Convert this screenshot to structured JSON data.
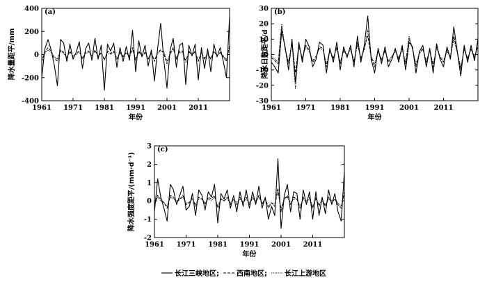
{
  "chart_data": [
    {
      "id": "a",
      "type": "line",
      "panel_label": "(a)",
      "title": "",
      "xlabel": "年份",
      "ylabel": "降水量距平/mm",
      "xlim": [
        1961,
        2021
      ],
      "ylim": [
        -400,
        400
      ],
      "xticks": [
        1961,
        1971,
        1981,
        1991,
        2001,
        2011
      ],
      "yticks": [
        -400,
        -200,
        0,
        200,
        400
      ],
      "x": [
        1961,
        1962,
        1963,
        1964,
        1965,
        1966,
        1967,
        1968,
        1969,
        1970,
        1971,
        1972,
        1973,
        1974,
        1975,
        1976,
        1977,
        1978,
        1979,
        1980,
        1981,
        1982,
        1983,
        1984,
        1985,
        1986,
        1987,
        1988,
        1989,
        1990,
        1991,
        1992,
        1993,
        1994,
        1995,
        1996,
        1997,
        1998,
        1999,
        2000,
        2001,
        2002,
        2003,
        2004,
        2005,
        2006,
        2007,
        2008,
        2009,
        2010,
        2011,
        2012,
        2013,
        2014,
        2015,
        2016,
        2017,
        2018,
        2019,
        2020,
        2021
      ],
      "series": [
        {
          "name": "长江三峡地区",
          "style": "solid",
          "values": [
            -200,
            50,
            130,
            40,
            -90,
            -270,
            130,
            100,
            -60,
            90,
            -40,
            20,
            110,
            -120,
            50,
            100,
            -50,
            140,
            -40,
            80,
            -310,
            90,
            30,
            100,
            -110,
            60,
            -60,
            70,
            -50,
            210,
            -150,
            120,
            -20,
            80,
            -100,
            40,
            -230,
            50,
            270,
            -50,
            -290,
            40,
            140,
            -110,
            80,
            100,
            -260,
            80,
            -10,
            90,
            -220,
            60,
            -120,
            50,
            -150,
            90,
            -20,
            60,
            -60,
            -200,
            330
          ]
        },
        {
          "name": "西南地区",
          "style": "dashed",
          "values": [
            -60,
            20,
            60,
            30,
            -30,
            -60,
            40,
            20,
            -30,
            30,
            -20,
            10,
            30,
            -40,
            20,
            30,
            -20,
            40,
            -20,
            20,
            -50,
            30,
            10,
            30,
            -40,
            20,
            -20,
            20,
            -20,
            60,
            -50,
            30,
            -10,
            20,
            -40,
            20,
            -60,
            20,
            40,
            10,
            -80,
            10,
            60,
            -40,
            30,
            30,
            -70,
            30,
            -10,
            30,
            -60,
            20,
            -40,
            10,
            -40,
            30,
            -10,
            20,
            -20,
            -60,
            80
          ]
        },
        {
          "name": "长江上游地区",
          "style": "dotted",
          "values": [
            -40,
            10,
            40,
            20,
            -20,
            -40,
            30,
            10,
            -20,
            20,
            -10,
            0,
            20,
            -30,
            10,
            20,
            -10,
            30,
            -10,
            10,
            -40,
            20,
            0,
            20,
            -30,
            10,
            -10,
            10,
            -10,
            40,
            -40,
            20,
            -10,
            10,
            -30,
            10,
            -50,
            10,
            30,
            30,
            -60,
            0,
            50,
            -30,
            20,
            20,
            -50,
            20,
            0,
            20,
            -50,
            10,
            -30,
            0,
            -30,
            20,
            0,
            10,
            -10,
            -50,
            70
          ]
        }
      ]
    },
    {
      "id": "b",
      "type": "line",
      "panel_label": "(b)",
      "title": "",
      "xlabel": "年份",
      "ylabel": "降水日数距平/d",
      "xlim": [
        1961,
        2021
      ],
      "ylim": [
        -30,
        30
      ],
      "xticks": [
        1961,
        1971,
        1981,
        1991,
        2001,
        2011
      ],
      "yticks": [
        -30,
        -20,
        -10,
        0,
        10,
        20,
        30
      ],
      "x": [
        1961,
        1962,
        1963,
        1964,
        1965,
        1966,
        1967,
        1968,
        1969,
        1970,
        1971,
        1972,
        1973,
        1974,
        1975,
        1976,
        1977,
        1978,
        1979,
        1980,
        1981,
        1982,
        1983,
        1984,
        1985,
        1986,
        1987,
        1988,
        1989,
        1990,
        1991,
        1992,
        1993,
        1994,
        1995,
        1996,
        1997,
        1998,
        1999,
        2000,
        2001,
        2002,
        2003,
        2004,
        2005,
        2006,
        2007,
        2008,
        2009,
        2010,
        2011,
        2012,
        2013,
        2014,
        2015,
        2016,
        2017,
        2018,
        2019,
        2020,
        2021
      ],
      "series": [
        {
          "name": "长江三峡地区",
          "style": "solid",
          "values": [
            -5,
            -8,
            -12,
            15,
            5,
            -10,
            10,
            -18,
            8,
            -5,
            10,
            5,
            -8,
            -3,
            8,
            6,
            -12,
            4,
            -5,
            8,
            -10,
            5,
            -2,
            6,
            -8,
            12,
            -5,
            6,
            25,
            -3,
            -12,
            4,
            -6,
            5,
            -8,
            -3,
            4,
            -5,
            6,
            -10,
            8,
            5,
            -12,
            2,
            6,
            -8,
            4,
            -12,
            7,
            -3,
            -8,
            5,
            -3,
            18,
            2,
            -14,
            6,
            -5,
            6,
            -4,
            10
          ]
        },
        {
          "name": "西南地区",
          "style": "dashed",
          "values": [
            -2,
            -4,
            -6,
            18,
            4,
            -6,
            8,
            -12,
            6,
            -3,
            6,
            3,
            -5,
            -2,
            5,
            4,
            -8,
            3,
            -3,
            5,
            -6,
            3,
            -1,
            4,
            -5,
            8,
            -3,
            4,
            12,
            -2,
            -8,
            3,
            -4,
            3,
            -5,
            -2,
            3,
            -3,
            4,
            -6,
            10,
            4,
            -8,
            1,
            4,
            -5,
            3,
            -8,
            5,
            -2,
            -5,
            3,
            -2,
            12,
            2,
            -10,
            4,
            -3,
            4,
            -2,
            6
          ]
        },
        {
          "name": "长江上游地区",
          "style": "dotted",
          "values": [
            -1,
            -3,
            -5,
            20,
            3,
            -5,
            7,
            -22,
            5,
            -2,
            5,
            2,
            -4,
            -1,
            4,
            3,
            -6,
            2,
            -2,
            4,
            -5,
            2,
            0,
            3,
            -4,
            6,
            -2,
            3,
            16,
            -1,
            -6,
            2,
            -3,
            2,
            -4,
            -1,
            2,
            -2,
            3,
            -5,
            12,
            3,
            -6,
            1,
            3,
            -4,
            2,
            -6,
            4,
            -1,
            -4,
            2,
            -1,
            10,
            1,
            -8,
            3,
            -2,
            3,
            -1,
            5
          ]
        }
      ]
    },
    {
      "id": "c",
      "type": "line",
      "panel_label": "(c)",
      "title": "",
      "xlabel": "年份",
      "ylabel": "降水强度距平/(mm·d⁻¹)",
      "xlim": [
        1961,
        2021
      ],
      "ylim": [
        -2,
        3
      ],
      "xticks": [
        1961,
        1971,
        1981,
        1991,
        2001,
        2011
      ],
      "yticks": [
        -2,
        -1,
        0,
        1,
        2,
        3
      ],
      "x": [
        1961,
        1962,
        1963,
        1964,
        1965,
        1966,
        1967,
        1968,
        1969,
        1970,
        1971,
        1972,
        1973,
        1974,
        1975,
        1976,
        1977,
        1978,
        1979,
        1980,
        1981,
        1982,
        1983,
        1984,
        1985,
        1986,
        1987,
        1988,
        1989,
        1990,
        1991,
        1992,
        1993,
        1994,
        1995,
        1996,
        1997,
        1998,
        1999,
        2000,
        2001,
        2002,
        2003,
        2004,
        2005,
        2006,
        2007,
        2008,
        2009,
        2010,
        2011,
        2012,
        2013,
        2014,
        2015,
        2016,
        2017,
        2018,
        2019,
        2020,
        2021
      ],
      "series": [
        {
          "name": "长江三峡地区",
          "style": "solid",
          "values": [
            -0.6,
            1.2,
            0.2,
            -0.4,
            -1.1,
            0.9,
            0.6,
            -0.2,
            0.3,
            0.8,
            -0.5,
            -0.3,
            0.4,
            -0.8,
            0.6,
            0.3,
            -0.5,
            0.5,
            0.2,
            0.9,
            -1.2,
            0.4,
            0.1,
            0.6,
            -0.4,
            0.3,
            -0.6,
            0.5,
            -0.3,
            0.6,
            -0.4,
            0.5,
            -0.2,
            0.8,
            -0.4,
            0.2,
            -1.0,
            -0.3,
            -0.8,
            2.3,
            -1.5,
            0.3,
            0.9,
            -0.6,
            0.5,
            0.4,
            -1.0,
            0.6,
            -0.2,
            0.5,
            -1.0,
            0.5,
            -0.8,
            0.2,
            -0.7,
            0.6,
            -0.2,
            0.4,
            -0.6,
            -1.1,
            1.6
          ]
        },
        {
          "name": "西南地区",
          "style": "dashed",
          "values": [
            -0.2,
            0.3,
            0.1,
            -0.1,
            -0.4,
            0.3,
            0.2,
            -0.1,
            0.1,
            0.3,
            -0.2,
            -0.1,
            0.2,
            -0.3,
            0.2,
            0.1,
            -0.2,
            0.2,
            0.1,
            0.3,
            -0.4,
            0.1,
            0,
            0.2,
            -0.2,
            0.1,
            -0.2,
            0.2,
            -0.1,
            0.2,
            -0.2,
            0.2,
            -0.1,
            0.3,
            -0.2,
            0.1,
            -0.4,
            -0.1,
            -0.3,
            0.7,
            -0.6,
            0.1,
            0.3,
            -0.2,
            0.2,
            0.1,
            -0.4,
            0.2,
            -0.1,
            0.2,
            -0.4,
            0.2,
            -0.3,
            0.1,
            -0.3,
            0.2,
            -0.1,
            0.1,
            -0.2,
            -0.4,
            0.5
          ]
        },
        {
          "name": "长江上游地区",
          "style": "dotted",
          "values": [
            -0.1,
            0.2,
            0,
            -0.1,
            -0.3,
            0.2,
            0.1,
            0,
            0.1,
            0.2,
            -0.1,
            -0.1,
            0.1,
            -0.2,
            0.1,
            0.1,
            -0.1,
            0.1,
            0,
            0.2,
            -0.3,
            0.1,
            0,
            0.1,
            -0.1,
            0.1,
            -0.1,
            0.1,
            -0.1,
            0.1,
            -0.1,
            0.1,
            0,
            0.2,
            -0.1,
            0.1,
            -0.3,
            -0.1,
            -0.2,
            0.5,
            -0.4,
            0.1,
            0.2,
            -0.1,
            0.1,
            0.1,
            -0.3,
            0.1,
            0,
            0.1,
            -0.3,
            0.1,
            -0.2,
            0,
            -0.2,
            0.1,
            0,
            0.1,
            -0.1,
            -0.3,
            0.4
          ]
        }
      ]
    }
  ],
  "legend": {
    "position": "bottom-center",
    "items": [
      {
        "label": "长江三峡地区;",
        "style": "solid"
      },
      {
        "label": "西南地区;",
        "style": "dashed"
      },
      {
        "label": "长江上游地区",
        "style": "dotted"
      }
    ]
  }
}
